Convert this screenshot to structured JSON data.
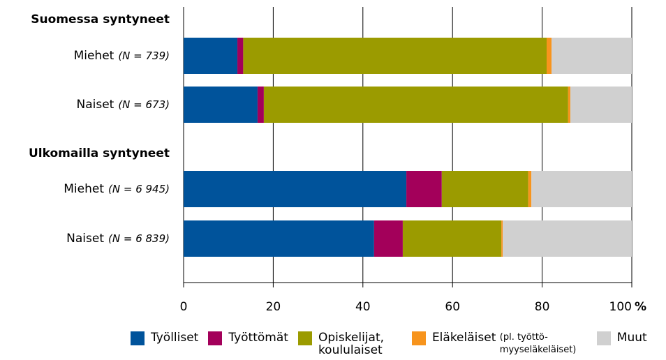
{
  "chart_data": {
    "type": "stacked-bar-horizontal",
    "groups": [
      {
        "name": "Suomessa syntyneet",
        "rows": [
          {
            "label": "Miehet",
            "n": "(N = 739)"
          },
          {
            "label": "Naiset",
            "n": "(N = 673)"
          }
        ]
      },
      {
        "name": "Ulkomailla syntyneet",
        "rows": [
          {
            "label": "Miehet",
            "n": "(N = 6 945)"
          },
          {
            "label": "Naiset",
            "n": "(N = 6 839)"
          }
        ]
      }
    ],
    "series": [
      {
        "name": "Työlliset",
        "color": "#00539b",
        "values": [
          12.0,
          16.5,
          49.7,
          42.5
        ]
      },
      {
        "name": "Työttömät",
        "color": "#a3005a",
        "values": [
          1.3,
          1.4,
          7.9,
          6.4
        ]
      },
      {
        "name": "Opiskelijat, koululaiset",
        "color": "#9b9b00",
        "values": [
          67.7,
          67.9,
          19.3,
          22.0
        ]
      },
      {
        "name": "Eläkeläiset",
        "note": "(pl. työttö-myyseläkeläiset)",
        "color": "#f7941d",
        "values": [
          1.1,
          0.5,
          0.7,
          0.3
        ]
      },
      {
        "name": "Muut",
        "color": "#d0d0d0",
        "values": [
          17.9,
          13.7,
          22.4,
          28.8
        ]
      }
    ],
    "xlim": [
      0,
      100
    ],
    "xticks": [
      0,
      20,
      40,
      60,
      80,
      100
    ],
    "x_unit": "%",
    "grid": true
  }
}
